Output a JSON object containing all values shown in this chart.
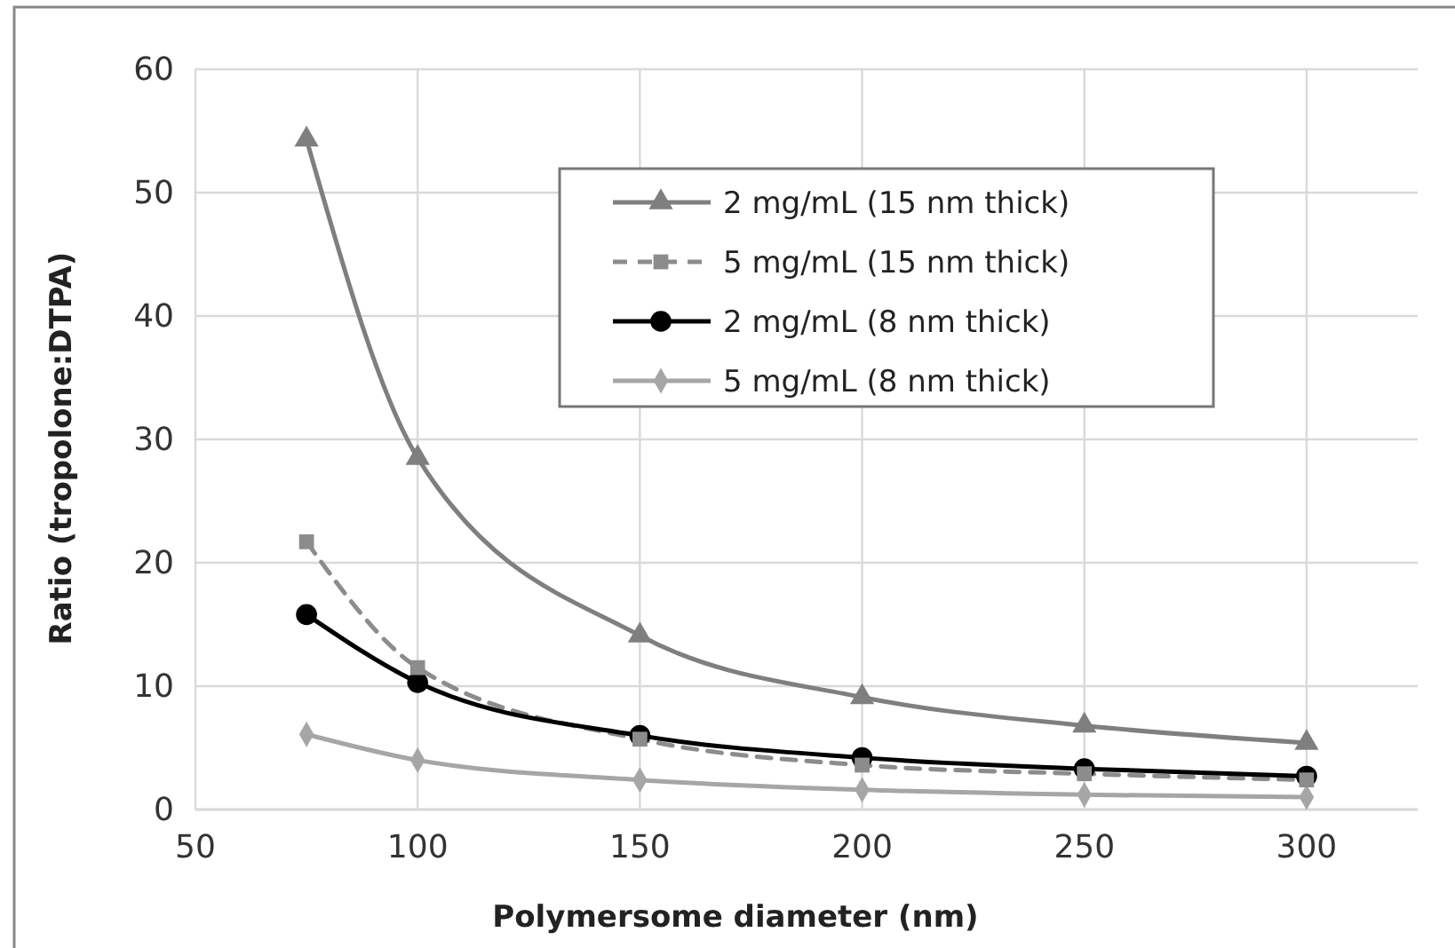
{
  "chart_data": {
    "type": "line",
    "xlabel": "Polymersome diameter (nm)",
    "ylabel": "Ratio (tropolone:DTPA)",
    "x": [
      75,
      100,
      150,
      200,
      250,
      300
    ],
    "series": [
      {
        "name": "2 mg/mL (15 nm thick)",
        "color": "#7f7f7f",
        "marker": "triangle",
        "line_style": "solid",
        "values": [
          54.3,
          28.5,
          14.1,
          9.1,
          6.8,
          5.4
        ]
      },
      {
        "name": "5 mg/mL (15 nm thick)",
        "color": "#8c8c8c",
        "marker": "square",
        "line_style": "dashed",
        "values": [
          21.7,
          11.5,
          5.7,
          3.6,
          2.9,
          2.4
        ]
      },
      {
        "name": "2 mg/mL (8 nm thick)",
        "color": "#000000",
        "marker": "circle",
        "line_style": "solid",
        "values": [
          15.8,
          10.3,
          6.0,
          4.2,
          3.3,
          2.7
        ]
      },
      {
        "name": "5 mg/mL (8 nm thick)",
        "color": "#a6a6a6",
        "marker": "diamond",
        "line_style": "solid",
        "values": [
          6.1,
          4.0,
          2.4,
          1.6,
          1.2,
          1.0
        ]
      }
    ],
    "xlim": [
      50,
      325
    ],
    "xticks": [
      50,
      100,
      150,
      200,
      250,
      300
    ],
    "ylim": [
      0,
      60
    ],
    "yticks": [
      0,
      10,
      20,
      30,
      40,
      50,
      60
    ],
    "grid": true,
    "legend": "top right"
  }
}
